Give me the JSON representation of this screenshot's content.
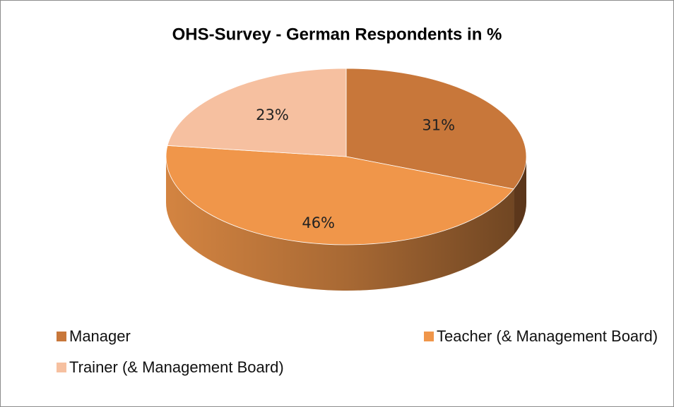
{
  "chart_data": {
    "type": "pie",
    "title": "OHS-Survey - German Respondents in %",
    "categories": [
      "Manager",
      "Teacher (& Management Board)",
      "Trainer (& Management Board)"
    ],
    "values": [
      31,
      46,
      23
    ],
    "value_labels": [
      "31%",
      "46%",
      "23%"
    ],
    "colors": [
      "#c8773a",
      "#f0964a",
      "#f6c0a0"
    ],
    "legend": "bottom"
  }
}
